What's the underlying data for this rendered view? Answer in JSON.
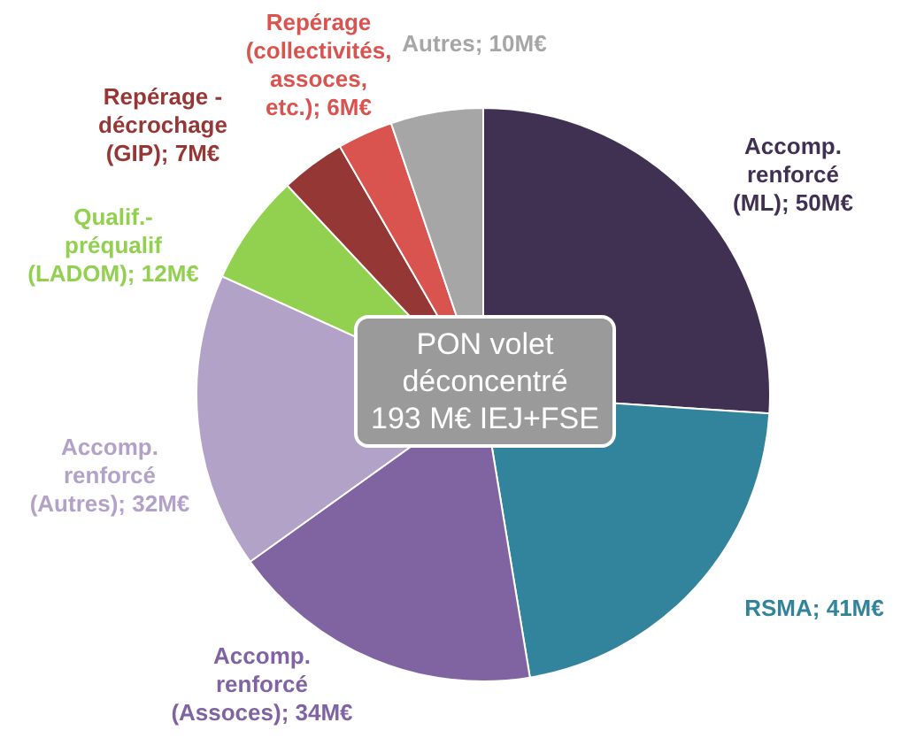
{
  "chart_data": {
    "type": "pie",
    "title": "PON volet déconcentré 193 M€ IEJ+FSE",
    "categories": [
      "Accomp. renforcé (ML)",
      "RSMA",
      "Accomp. renforcé (Assoces)",
      "Accomp. renforcé (Autres)",
      "Qualif.-préqualif (LADOM)",
      "Repérage - décrochage (GIP)",
      "Repérage (collectivités, assoces, etc.)",
      "Autres"
    ],
    "values": [
      50,
      41,
      34,
      32,
      12,
      7,
      6,
      10
    ],
    "colors": [
      "#403152",
      "#31849b",
      "#8064a2",
      "#b3a2c7",
      "#92d050",
      "#953735",
      "#d9534f",
      "#a6a6a6"
    ],
    "value_labels": [
      "50M€",
      "41M€",
      "34M€",
      "32M€",
      "12M€",
      "7M€",
      "6M€",
      "10M€"
    ],
    "legend": false
  }
}
